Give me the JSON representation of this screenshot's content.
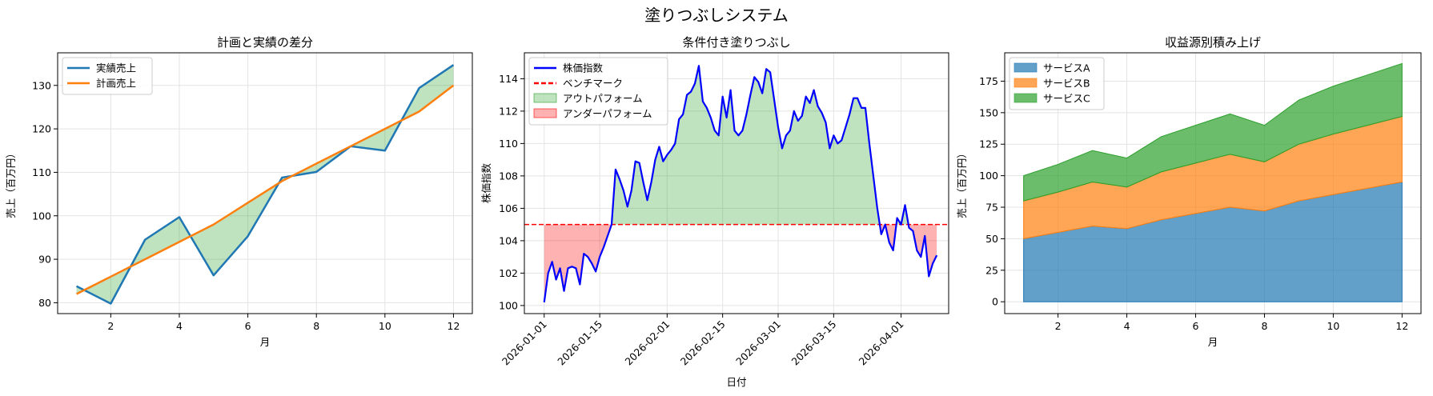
{
  "suptitle": "塗りつぶしシステム",
  "colors": {
    "actual": "#1f77b4",
    "plan": "#ff7f0e",
    "diff_fill": "#2ca02c",
    "stock": "#0000ff",
    "benchmark": "#ff0000",
    "outperform": "#2ca02c",
    "underperform": "#ff0000",
    "service_a": "#1f77b4",
    "service_b": "#ff7f0e",
    "service_c": "#2ca02c"
  },
  "chart_data": [
    {
      "type": "line",
      "title": "計画と実績の差分",
      "xlabel": "月",
      "ylabel": "売上（百万円）",
      "xlim": [
        0.45,
        12.55
      ],
      "ylim": [
        77.5,
        137.5
      ],
      "xticks": [
        2,
        4,
        6,
        8,
        10,
        12
      ],
      "yticks": [
        80,
        90,
        100,
        110,
        120,
        130
      ],
      "grid": true,
      "legend_position": "top-left",
      "x": [
        1,
        2,
        3,
        4,
        5,
        6,
        7,
        8,
        9,
        10,
        11,
        12
      ],
      "series": [
        {
          "name": "実績売上",
          "values": [
            83.8,
            79.8,
            94.5,
            99.7,
            86.3,
            95.3,
            108.8,
            110.1,
            116.0,
            115.0,
            129.4,
            134.7
          ]
        },
        {
          "name": "計画売上",
          "values": [
            82.0,
            86.0,
            90.0,
            94.0,
            98.0,
            103.0,
            108.0,
            112.0,
            116.0,
            120.0,
            124.0,
            130.0
          ]
        }
      ],
      "fill_between": "実績売上 vs 計画売上"
    },
    {
      "type": "line",
      "title": "条件付き塗りつぶし",
      "xlabel": "日付",
      "ylabel": "株価指数",
      "x_start": "2026-01-01",
      "x_freq": "daily",
      "xlim": [
        "2025-12-27",
        "2026-04-13"
      ],
      "ylim": [
        99.5,
        115.6
      ],
      "xticks": [
        "2026-01-01",
        "2026-01-15",
        "2026-02-01",
        "2026-02-15",
        "2026-03-01",
        "2026-03-15",
        "2026-04-01"
      ],
      "yticks": [
        100,
        102,
        104,
        106,
        108,
        110,
        112,
        114
      ],
      "grid": true,
      "legend_position": "top-left",
      "benchmark": 105,
      "series": [
        {
          "name": "株価指数",
          "values": [
            100.2,
            102.0,
            102.7,
            101.6,
            102.3,
            100.9,
            102.3,
            102.4,
            102.3,
            101.3,
            103.2,
            103.0,
            102.6,
            102.1,
            103.0,
            103.6,
            104.3,
            105.0,
            108.4,
            107.8,
            107.1,
            106.1,
            107.1,
            108.9,
            108.8,
            107.6,
            106.5,
            107.6,
            109.0,
            109.8,
            108.9,
            109.3,
            109.6,
            110.0,
            111.5,
            111.8,
            113.0,
            113.2,
            113.7,
            114.8,
            112.6,
            112.2,
            111.6,
            110.8,
            110.5,
            112.9,
            111.6,
            113.3,
            110.8,
            110.5,
            110.8,
            111.8,
            113.0,
            114.1,
            113.8,
            113.1,
            114.6,
            114.4,
            112.7,
            111.0,
            109.7,
            110.5,
            110.8,
            112.0,
            111.4,
            111.7,
            112.9,
            112.5,
            113.3,
            112.3,
            111.9,
            111.3,
            109.7,
            110.5,
            110.0,
            110.2,
            111.0,
            111.8,
            112.8,
            112.8,
            112.2,
            112.2,
            110.0,
            108.0,
            106.0,
            104.4,
            105.0,
            103.9,
            103.4,
            105.4,
            105.0,
            106.2,
            104.8,
            104.6,
            103.4,
            103.0,
            104.3,
            101.8,
            102.6,
            103.1
          ]
        },
        {
          "name": "ベンチマーク",
          "values": [
            105
          ]
        }
      ],
      "fill_labels": [
        "アウトパフォーム",
        "アンダーパフォーム"
      ]
    },
    {
      "type": "area",
      "stacked": true,
      "title": "収益源別積み上げ",
      "xlabel": "月",
      "ylabel": "売上（百万円）",
      "xlim": [
        0.45,
        12.55
      ],
      "ylim": [
        -9.4,
        197.5
      ],
      "xticks": [
        2,
        4,
        6,
        8,
        10,
        12
      ],
      "yticks": [
        0,
        25,
        50,
        75,
        100,
        125,
        150,
        175
      ],
      "grid": true,
      "legend_position": "top-left",
      "x": [
        1,
        2,
        3,
        4,
        5,
        6,
        7,
        8,
        9,
        10,
        11,
        12
      ],
      "series": [
        {
          "name": "サービスA",
          "values": [
            50,
            55,
            60,
            58,
            65,
            70,
            75,
            72,
            80,
            85,
            90,
            95
          ]
        },
        {
          "name": "サービスB",
          "values": [
            30,
            32,
            35,
            33,
            38,
            40,
            42,
            39,
            45,
            48,
            50,
            52
          ]
        },
        {
          "name": "サービスC",
          "values": [
            20,
            22,
            25,
            23,
            28,
            30,
            32,
            29,
            35,
            38,
            40,
            42
          ]
        }
      ]
    }
  ]
}
